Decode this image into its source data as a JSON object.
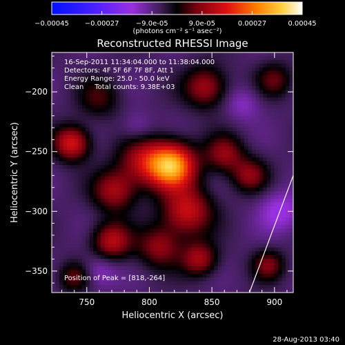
{
  "chart_data": {
    "type": "heatmap",
    "title": "Reconstructed RHESSI Image",
    "xlabel": "Heliocentric X (arcsec)",
    "ylabel": "Heliocentric Y (arcsec)",
    "x_ticks": [
      750,
      800,
      850,
      900
    ],
    "y_ticks": [
      -200,
      -250,
      -300,
      -350
    ],
    "xlim": [
      722,
      915
    ],
    "ylim": [
      -368,
      -167
    ],
    "colorbar": {
      "ticks": [
        "-0.00045",
        "-0.00027",
        "-9.0e-05",
        "9.0e-05",
        "0.00027",
        "0.00045"
      ],
      "unit": "(photons cm⁻² s⁻¹ asec⁻²)",
      "range": [
        -0.00045,
        0.00045
      ]
    },
    "peak": {
      "x": 818,
      "y": -264
    },
    "limb_line": {
      "x": [
        880,
        915
      ],
      "y": [
        -368,
        -270
      ]
    },
    "blobs": [
      {
        "x": 818,
        "y": -262,
        "amp": 0.0004,
        "sigma": 13
      },
      {
        "x": 795,
        "y": -258,
        "amp": 0.00018,
        "sigma": 14
      },
      {
        "x": 738,
        "y": -243,
        "amp": 0.00024,
        "sigma": 10
      },
      {
        "x": 772,
        "y": -283,
        "amp": 0.00018,
        "sigma": 12
      },
      {
        "x": 770,
        "y": -325,
        "amp": 0.0002,
        "sigma": 11
      },
      {
        "x": 830,
        "y": -300,
        "amp": 0.00022,
        "sigma": 14
      },
      {
        "x": 808,
        "y": -330,
        "amp": 0.00016,
        "sigma": 12
      },
      {
        "x": 840,
        "y": -340,
        "amp": 0.00018,
        "sigma": 10
      },
      {
        "x": 860,
        "y": -252,
        "amp": 0.00016,
        "sigma": 11
      },
      {
        "x": 880,
        "y": -270,
        "amp": 0.00015,
        "sigma": 10
      },
      {
        "x": 845,
        "y": -196,
        "amp": 0.00018,
        "sigma": 12
      },
      {
        "x": 900,
        "y": -190,
        "amp": 0.00012,
        "sigma": 10
      },
      {
        "x": 760,
        "y": -205,
        "amp": 0.0001,
        "sigma": 12
      },
      {
        "x": 740,
        "y": -355,
        "amp": 0.00012,
        "sigma": 9
      },
      {
        "x": 895,
        "y": -345,
        "amp": 0.00014,
        "sigma": 9
      },
      {
        "x": 905,
        "y": -300,
        "amp": -0.0001,
        "sigma": 12
      },
      {
        "x": 760,
        "y": -350,
        "amp": -8e-05,
        "sigma": 10
      },
      {
        "x": 790,
        "y": -230,
        "amp": -6e-05,
        "sigma": 9
      },
      {
        "x": 875,
        "y": -210,
        "amp": -7e-05,
        "sigma": 10
      }
    ]
  },
  "info": {
    "time_range": "16-Sep-2011 11:34:04.000 to 11:38:04.000",
    "detectors": "Detectors: 4F 5F 6F 7F 8F, Att 1",
    "energy_range": "Energy Range: 25.0 - 50.0 keV",
    "method_counts": "Clean     Total counts: 9.38E+03",
    "peak_label": "Position of Peak = [818,-264]"
  },
  "footer": {
    "timestamp": "28-Aug-2013 03:40"
  }
}
